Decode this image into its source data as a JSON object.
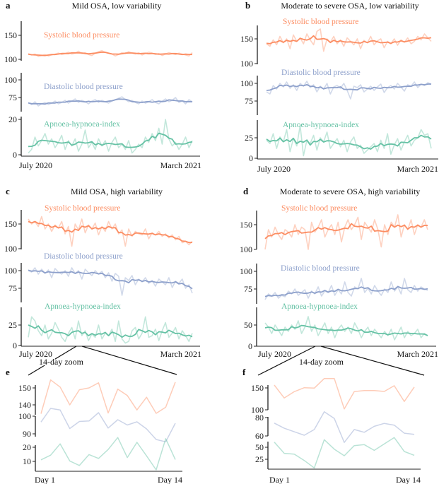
{
  "colors": {
    "systolic": "#fc8d62",
    "diastolic": "#8da0cb",
    "ahi": "#66c2a5"
  },
  "zoom_label": "14-day zoom",
  "chart_data": [
    {
      "id": "a",
      "letter": "a",
      "type": "line",
      "title": "Mild OSA, low variability",
      "x_tick_labels": [
        "July 2020",
        "March 2021"
      ],
      "series": [
        {
          "name": "Systolic blood pressure",
          "key": "systolic",
          "yticks": [
            100,
            150
          ],
          "values": [
            112,
            109,
            111,
            106,
            108,
            110,
            107,
            109,
            111,
            113,
            110,
            112,
            115,
            111,
            113,
            117,
            112,
            114,
            110,
            108,
            113,
            116,
            118,
            115,
            113,
            111,
            107,
            110,
            114,
            112,
            116,
            113,
            111,
            114,
            109,
            112,
            115,
            113,
            110,
            112,
            108,
            111,
            114,
            112,
            110,
            113,
            111,
            109,
            107,
            114
          ]
        },
        {
          "name": "Diastolic blood pressure",
          "key": "diastolic",
          "yticks": [
            75,
            100
          ],
          "values": [
            68,
            65,
            69,
            63,
            66,
            68,
            65,
            67,
            70,
            66,
            68,
            71,
            67,
            70,
            73,
            68,
            71,
            69,
            66,
            70,
            72,
            68,
            71,
            69,
            67,
            70,
            72,
            74,
            76,
            72,
            69,
            71,
            68,
            66,
            70,
            67,
            69,
            72,
            68,
            66,
            70,
            73,
            69,
            71,
            75,
            68,
            70,
            66,
            72,
            69
          ]
        },
        {
          "name": "Apnoea-hypnoea-index",
          "key": "ahi",
          "yticks": [
            0,
            20
          ],
          "values": [
            1,
            3,
            10,
            5,
            8,
            12,
            6,
            9,
            4,
            7,
            11,
            3,
            8,
            5,
            9,
            2,
            6,
            14,
            4,
            7,
            3,
            9,
            5,
            8,
            2,
            7,
            10,
            4,
            6,
            3,
            8,
            1,
            3,
            6,
            4,
            10,
            7,
            12,
            8,
            15,
            6,
            20,
            9,
            5,
            7,
            3,
            6,
            10,
            4,
            8
          ]
        }
      ]
    },
    {
      "id": "b",
      "letter": "b",
      "type": "line",
      "title": "Moderate to severe OSA, low variability",
      "x_tick_labels": [
        "July 2020",
        "March 2021"
      ],
      "series": [
        {
          "name": "Systolic blood pressure",
          "key": "systolic",
          "yticks": [
            100,
            150
          ],
          "values": [
            140,
            135,
            148,
            138,
            155,
            142,
            150,
            130,
            158,
            145,
            152,
            140,
            160,
            148,
            138,
            165,
            170,
            125,
            150,
            143,
            155,
            140,
            148,
            135,
            152,
            145,
            138,
            150,
            130,
            147,
            142,
            155,
            138,
            146,
            150,
            132,
            145,
            140,
            150,
            137,
            148,
            143,
            152,
            140,
            145,
            155,
            148,
            160,
            152,
            145
          ]
        },
        {
          "name": "Diastolic blood pressure",
          "key": "diastolic",
          "yticks": [
            75,
            100
          ],
          "values": [
            88,
            85,
            97,
            92,
            100,
            95,
            102,
            93,
            98,
            90,
            100,
            96,
            103,
            94,
            98,
            88,
            96,
            92,
            100,
            85,
            95,
            97,
            93,
            100,
            90,
            78,
            96,
            94,
            98,
            88,
            92,
            96,
            90,
            95,
            99,
            87,
            94,
            97,
            92,
            100,
            95,
            89,
            98,
            96,
            102,
            94,
            99,
            97,
            101,
            99
          ]
        },
        {
          "name": "Apnoea-hypnoea-index",
          "key": "ahi",
          "yticks": [
            0,
            25
          ],
          "values": [
            22,
            18,
            30,
            12,
            26,
            20,
            35,
            8,
            24,
            15,
            40,
            3,
            22,
            18,
            28,
            10,
            25,
            20,
            32,
            12,
            18,
            24,
            14,
            22,
            8,
            20,
            26,
            12,
            16,
            6,
            10,
            14,
            18,
            8,
            22,
            12,
            30,
            5,
            16,
            24,
            10,
            20,
            28,
            15,
            22,
            25,
            35,
            28,
            30,
            12
          ]
        }
      ]
    },
    {
      "id": "c",
      "letter": "c",
      "type": "line",
      "title": "Mild OSA, high variability",
      "x_tick_labels": [
        "July 2020",
        "March 2021"
      ],
      "series": [
        {
          "name": "Systolic blood pressure",
          "key": "systolic",
          "yticks": [
            100,
            150
          ],
          "values": [
            160,
            150,
            155,
            145,
            165,
            140,
            150,
            135,
            148,
            142,
            155,
            130,
            145,
            105,
            150,
            138,
            160,
            132,
            148,
            140,
            152,
            128,
            145,
            135,
            155,
            140,
            150,
            130,
            138,
            105,
            140,
            125,
            135,
            130,
            128,
            140,
            120,
            132,
            128,
            135,
            125,
            130,
            122,
            128,
            118,
            125,
            112,
            115,
            108,
            115
          ]
        },
        {
          "name": "Diastolic blood pressure",
          "key": "diastolic",
          "yticks": [
            75,
            100
          ],
          "values": [
            100,
            98,
            104,
            95,
            102,
            96,
            101,
            90,
            103,
            98,
            95,
            100,
            92,
            104,
            96,
            100,
            88,
            102,
            97,
            93,
            100,
            95,
            99,
            90,
            97,
            85,
            96,
            92,
            65,
            90,
            86,
            93,
            80,
            88,
            84,
            90,
            82,
            86,
            78,
            88,
            84,
            80,
            90,
            76,
            85,
            82,
            88,
            75,
            80,
            68
          ]
        },
        {
          "name": "Apnoea-hypnoea-index",
          "key": "ahi",
          "yticks": [
            0,
            25
          ],
          "values": [
            10,
            35,
            30,
            18,
            12,
            25,
            8,
            15,
            28,
            20,
            10,
            5,
            15,
            22,
            8,
            30,
            12,
            18,
            6,
            14,
            10,
            25,
            8,
            15,
            12,
            20,
            5,
            30,
            8,
            3,
            5,
            18,
            22,
            8,
            15,
            35,
            10,
            12,
            20,
            6,
            18,
            28,
            10,
            15,
            22,
            8,
            18,
            12,
            5,
            15
          ]
        }
      ]
    },
    {
      "id": "d",
      "letter": "d",
      "type": "line",
      "title": "Moderate to severe OSA, high variability",
      "x_tick_labels": [
        "July 2020",
        "March 2021"
      ],
      "series": [
        {
          "name": "Systolic blood pressure",
          "key": "systolic",
          "yticks": [
            100,
            150
          ],
          "values": [
            100,
            140,
            125,
            145,
            130,
            120,
            140,
            135,
            125,
            150,
            130,
            145,
            140,
            100,
            155,
            135,
            145,
            160,
            125,
            140,
            150,
            130,
            155,
            115,
            145,
            160,
            140,
            150,
            165,
            120,
            155,
            145,
            135,
            160,
            140,
            105,
            150,
            130,
            155,
            145,
            170,
            125,
            150,
            140,
            160,
            130,
            150,
            145,
            160,
            140
          ]
        },
        {
          "name": "Diastolic blood pressure",
          "key": "diastolic",
          "yticks": [
            75,
            100
          ],
          "values": [
            60,
            68,
            65,
            70,
            62,
            66,
            64,
            72,
            68,
            75,
            66,
            70,
            74,
            62,
            72,
            68,
            78,
            65,
            72,
            70,
            80,
            66,
            74,
            68,
            85,
            70,
            65,
            78,
            75,
            90,
            70,
            76,
            68,
            80,
            72,
            66,
            75,
            70,
            85,
            72,
            78,
            68,
            90,
            74,
            70,
            80,
            72,
            78,
            75,
            73
          ]
        },
        {
          "name": "Apnoea-hypnoea-index",
          "key": "ahi",
          "yticks": [
            0,
            50
          ],
          "values": [
            55,
            45,
            30,
            50,
            38,
            25,
            45,
            35,
            50,
            40,
            60,
            30,
            45,
            70,
            35,
            50,
            25,
            40,
            55,
            30,
            45,
            20,
            40,
            50,
            35,
            45,
            30,
            55,
            40,
            20,
            35,
            45,
            25,
            40,
            30,
            20,
            35,
            25,
            40,
            15,
            30,
            45,
            20,
            35,
            25,
            30,
            40,
            20,
            30,
            25
          ]
        }
      ]
    },
    {
      "id": "e",
      "letter": "e",
      "type": "line",
      "title": "",
      "x_tick_labels": [
        "Day 1",
        "Day 14"
      ],
      "series": [
        {
          "key": "systolic",
          "yticks": [
            140,
            150
          ],
          "values": [
            134.8,
            154.7,
            150.5,
            140,
            148.9,
            150,
            153,
            135.2,
            149.3,
            145.5,
            137,
            144.5,
            135,
            138.6,
            153.4
          ]
        },
        {
          "key": "diastolic",
          "yticks": [
            90,
            100
          ],
          "values": [
            96.7,
            104.4,
            103.5,
            93,
            97,
            97.3,
            102,
            93.3,
            98,
            95,
            96.8,
            92.8,
            86.8,
            85.5,
            96
          ]
        },
        {
          "key": "ahi",
          "yticks": [
            10,
            20
          ],
          "values": [
            11.1,
            14.4,
            22.4,
            10.3,
            7.1,
            14.8,
            12.1,
            18.4,
            26.9,
            12.7,
            23.5,
            13.9,
            4,
            26.1,
            11.3
          ]
        }
      ]
    },
    {
      "id": "f",
      "letter": "f",
      "type": "line",
      "title": "",
      "x_tick_labels": [
        "Day 1",
        "Day 14"
      ],
      "series": [
        {
          "key": "systolic",
          "yticks": [
            100,
            150
          ],
          "values": [
            156.5,
            127,
            141.4,
            150.5,
            149.5,
            171.5,
            171.5,
            102,
            141.4,
            144,
            144,
            142,
            155,
            119,
            152
          ]
        },
        {
          "key": "diastolic",
          "yticks": [
            60,
            80
          ],
          "values": [
            74,
            68.4,
            64.5,
            60.8,
            67,
            86.3,
            79,
            52.9,
            67,
            64,
            70.5,
            73.7,
            71.8,
            63,
            61.8
          ]
        },
        {
          "key": "ahi",
          "yticks": [
            25,
            50
          ],
          "values": [
            60.8,
            37.3,
            35.8,
            22.5,
            6.9,
            65.7,
            46.1,
            32.4,
            53.4,
            55.4,
            43.6,
            56.9,
            70.1,
            41.2,
            33.3
          ]
        }
      ]
    }
  ]
}
